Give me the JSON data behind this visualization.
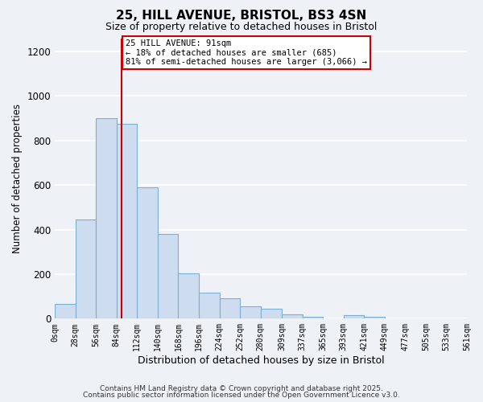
{
  "title": "25, HILL AVENUE, BRISTOL, BS3 4SN",
  "subtitle": "Size of property relative to detached houses in Bristol",
  "xlabel": "Distribution of detached houses by size in Bristol",
  "ylabel": "Number of detached properties",
  "bar_color": "#cddcef",
  "bar_edge_color": "#7bafd4",
  "background_color": "#eef2f7",
  "grid_color": "#ffffff",
  "vline_x": 91,
  "vline_color": "#cc0000",
  "bin_edges": [
    0,
    28,
    56,
    84,
    112,
    140,
    168,
    196,
    224,
    252,
    280,
    309,
    337,
    365,
    393,
    421,
    449,
    477,
    505,
    533,
    561
  ],
  "bin_labels": [
    "0sqm",
    "28sqm",
    "56sqm",
    "84sqm",
    "112sqm",
    "140sqm",
    "168sqm",
    "196sqm",
    "224sqm",
    "252sqm",
    "280sqm",
    "309sqm",
    "337sqm",
    "365sqm",
    "393sqm",
    "421sqm",
    "449sqm",
    "477sqm",
    "505sqm",
    "533sqm",
    "561sqm"
  ],
  "counts": [
    65,
    445,
    900,
    875,
    590,
    380,
    205,
    115,
    90,
    55,
    45,
    20,
    10,
    0,
    15,
    10,
    0,
    0,
    0,
    0
  ],
  "annotation_title": "25 HILL AVENUE: 91sqm",
  "annotation_line1": "← 18% of detached houses are smaller (685)",
  "annotation_line2": "81% of semi-detached houses are larger (3,066) →",
  "annotation_box_color": "#ffffff",
  "annotation_box_edge": "#cc0000",
  "ylim": [
    0,
    1260
  ],
  "yticks": [
    0,
    200,
    400,
    600,
    800,
    1000,
    1200
  ],
  "footer1": "Contains HM Land Registry data © Crown copyright and database right 2025.",
  "footer2": "Contains public sector information licensed under the Open Government Licence v3.0."
}
